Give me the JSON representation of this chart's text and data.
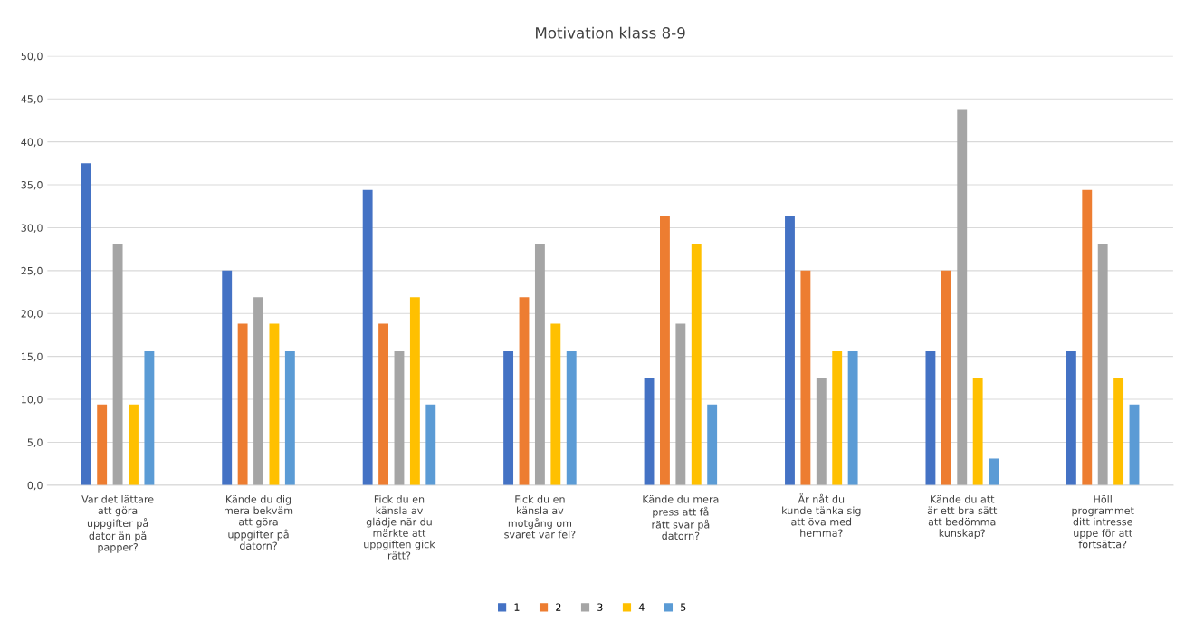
{
  "chart_data": {
    "type": "bar",
    "title": "Motivation klass 8-9",
    "categories": [
      "Var det lättare\natt göra\nuppgifter på\ndator än på\npapper?",
      "Kände du dig\nmera bekväm\natt göra\nuppgifter på\ndatorn?",
      "Fick du en\nkänsla av\nglädje när du\nmärkte att\nuppgiften gick\nrätt?",
      "Fick du en\nkänsla av\nmotgång om\nsvaret var fel?",
      "Kände du mera\npress att få\nrätt svar på\ndatorn?",
      "Är nåt du\nkunde tänka sig\natt öva med\nhemma?",
      "Kände du att\när ett bra sätt\natt bedömma\nkunskap?",
      "Höll\nprogrammet\nditt intresse\nuppe för att\nfortsätta?"
    ],
    "series": [
      {
        "name": "1",
        "color": "#4472c4",
        "values": [
          37.5,
          25.0,
          34.4,
          15.6,
          12.5,
          31.3,
          15.6,
          15.6
        ]
      },
      {
        "name": "2",
        "color": "#ed7d31",
        "values": [
          9.4,
          18.8,
          18.8,
          21.9,
          31.3,
          25.0,
          25.0,
          34.4
        ]
      },
      {
        "name": "3",
        "color": "#a5a5a5",
        "values": [
          28.1,
          21.9,
          15.6,
          28.1,
          18.8,
          12.5,
          43.8,
          28.1
        ]
      },
      {
        "name": "4",
        "color": "#ffc000",
        "values": [
          9.4,
          18.8,
          21.9,
          18.8,
          28.1,
          15.6,
          12.5,
          12.5
        ]
      },
      {
        "name": "5",
        "color": "#5b9bd5",
        "values": [
          15.6,
          15.6,
          9.4,
          15.6,
          9.4,
          15.6,
          3.1,
          9.4
        ]
      }
    ],
    "ylim": [
      0,
      50
    ],
    "yticks": [
      {
        "value": 0,
        "label": "0,0"
      },
      {
        "value": 5,
        "label": "5,0"
      },
      {
        "value": 10,
        "label": "10,0"
      },
      {
        "value": 15,
        "label": "15,0"
      },
      {
        "value": 20,
        "label": "20,0"
      },
      {
        "value": 25,
        "label": "25,0"
      },
      {
        "value": 30,
        "label": "30,0"
      },
      {
        "value": 35,
        "label": "35,0"
      },
      {
        "value": 40,
        "label": "40,0"
      },
      {
        "value": 45,
        "label": "45,0"
      },
      {
        "value": 50,
        "label": "50,0"
      }
    ],
    "grid": "y",
    "legend": "bottom"
  }
}
